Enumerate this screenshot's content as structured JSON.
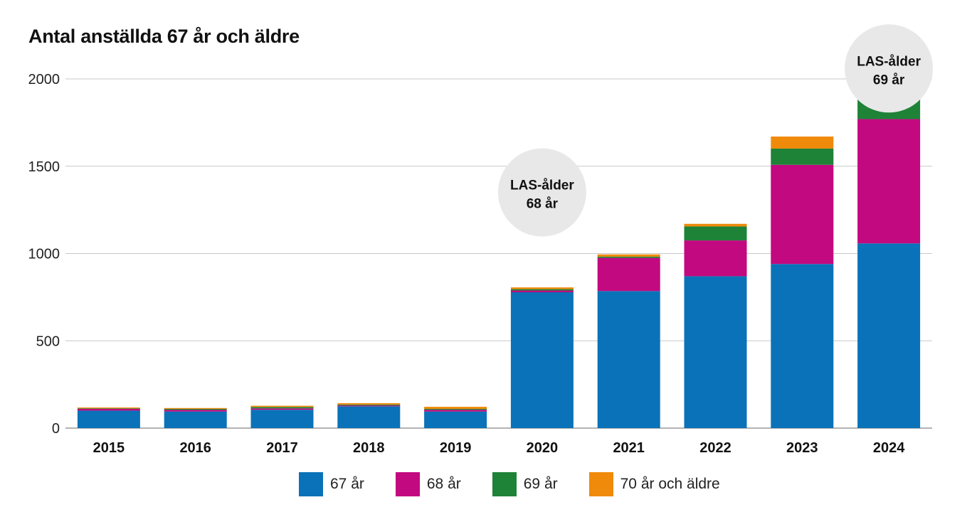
{
  "chart_data": {
    "type": "bar",
    "stacked": true,
    "title": "Antal anställda 67 år och äldre",
    "xlabel": "",
    "ylabel": "",
    "ylim": [
      0,
      2000
    ],
    "yticks": [
      0,
      500,
      1000,
      1500,
      2000
    ],
    "grid": true,
    "legend_position": "bottom",
    "categories": [
      "2015",
      "2016",
      "2017",
      "2018",
      "2019",
      "2020",
      "2021",
      "2022",
      "2023",
      "2024"
    ],
    "series": [
      {
        "name": "67 år",
        "color": "#0a72b8",
        "values": [
          100,
          95,
          105,
          125,
          95,
          778,
          785,
          870,
          940,
          1058
        ]
      },
      {
        "name": "68 år",
        "color": "#c2097f",
        "values": [
          10,
          10,
          8,
          5,
          10,
          10,
          190,
          205,
          568,
          712
        ]
      },
      {
        "name": "69 år",
        "color": "#1e8237",
        "values": [
          3,
          5,
          8,
          5,
          5,
          8,
          7,
          80,
          93,
          140
        ]
      },
      {
        "name": "70 år och äldre",
        "color": "#ef8a0b",
        "values": [
          5,
          5,
          7,
          8,
          12,
          10,
          13,
          15,
          69,
          90
        ]
      }
    ],
    "annotations": [
      {
        "category": "2020",
        "lines": [
          "LAS-ålder",
          "68 år"
        ],
        "y": 1350
      },
      {
        "category": "2024",
        "lines": [
          "LAS-ålder",
          "69 år"
        ],
        "y": 2060
      }
    ]
  }
}
